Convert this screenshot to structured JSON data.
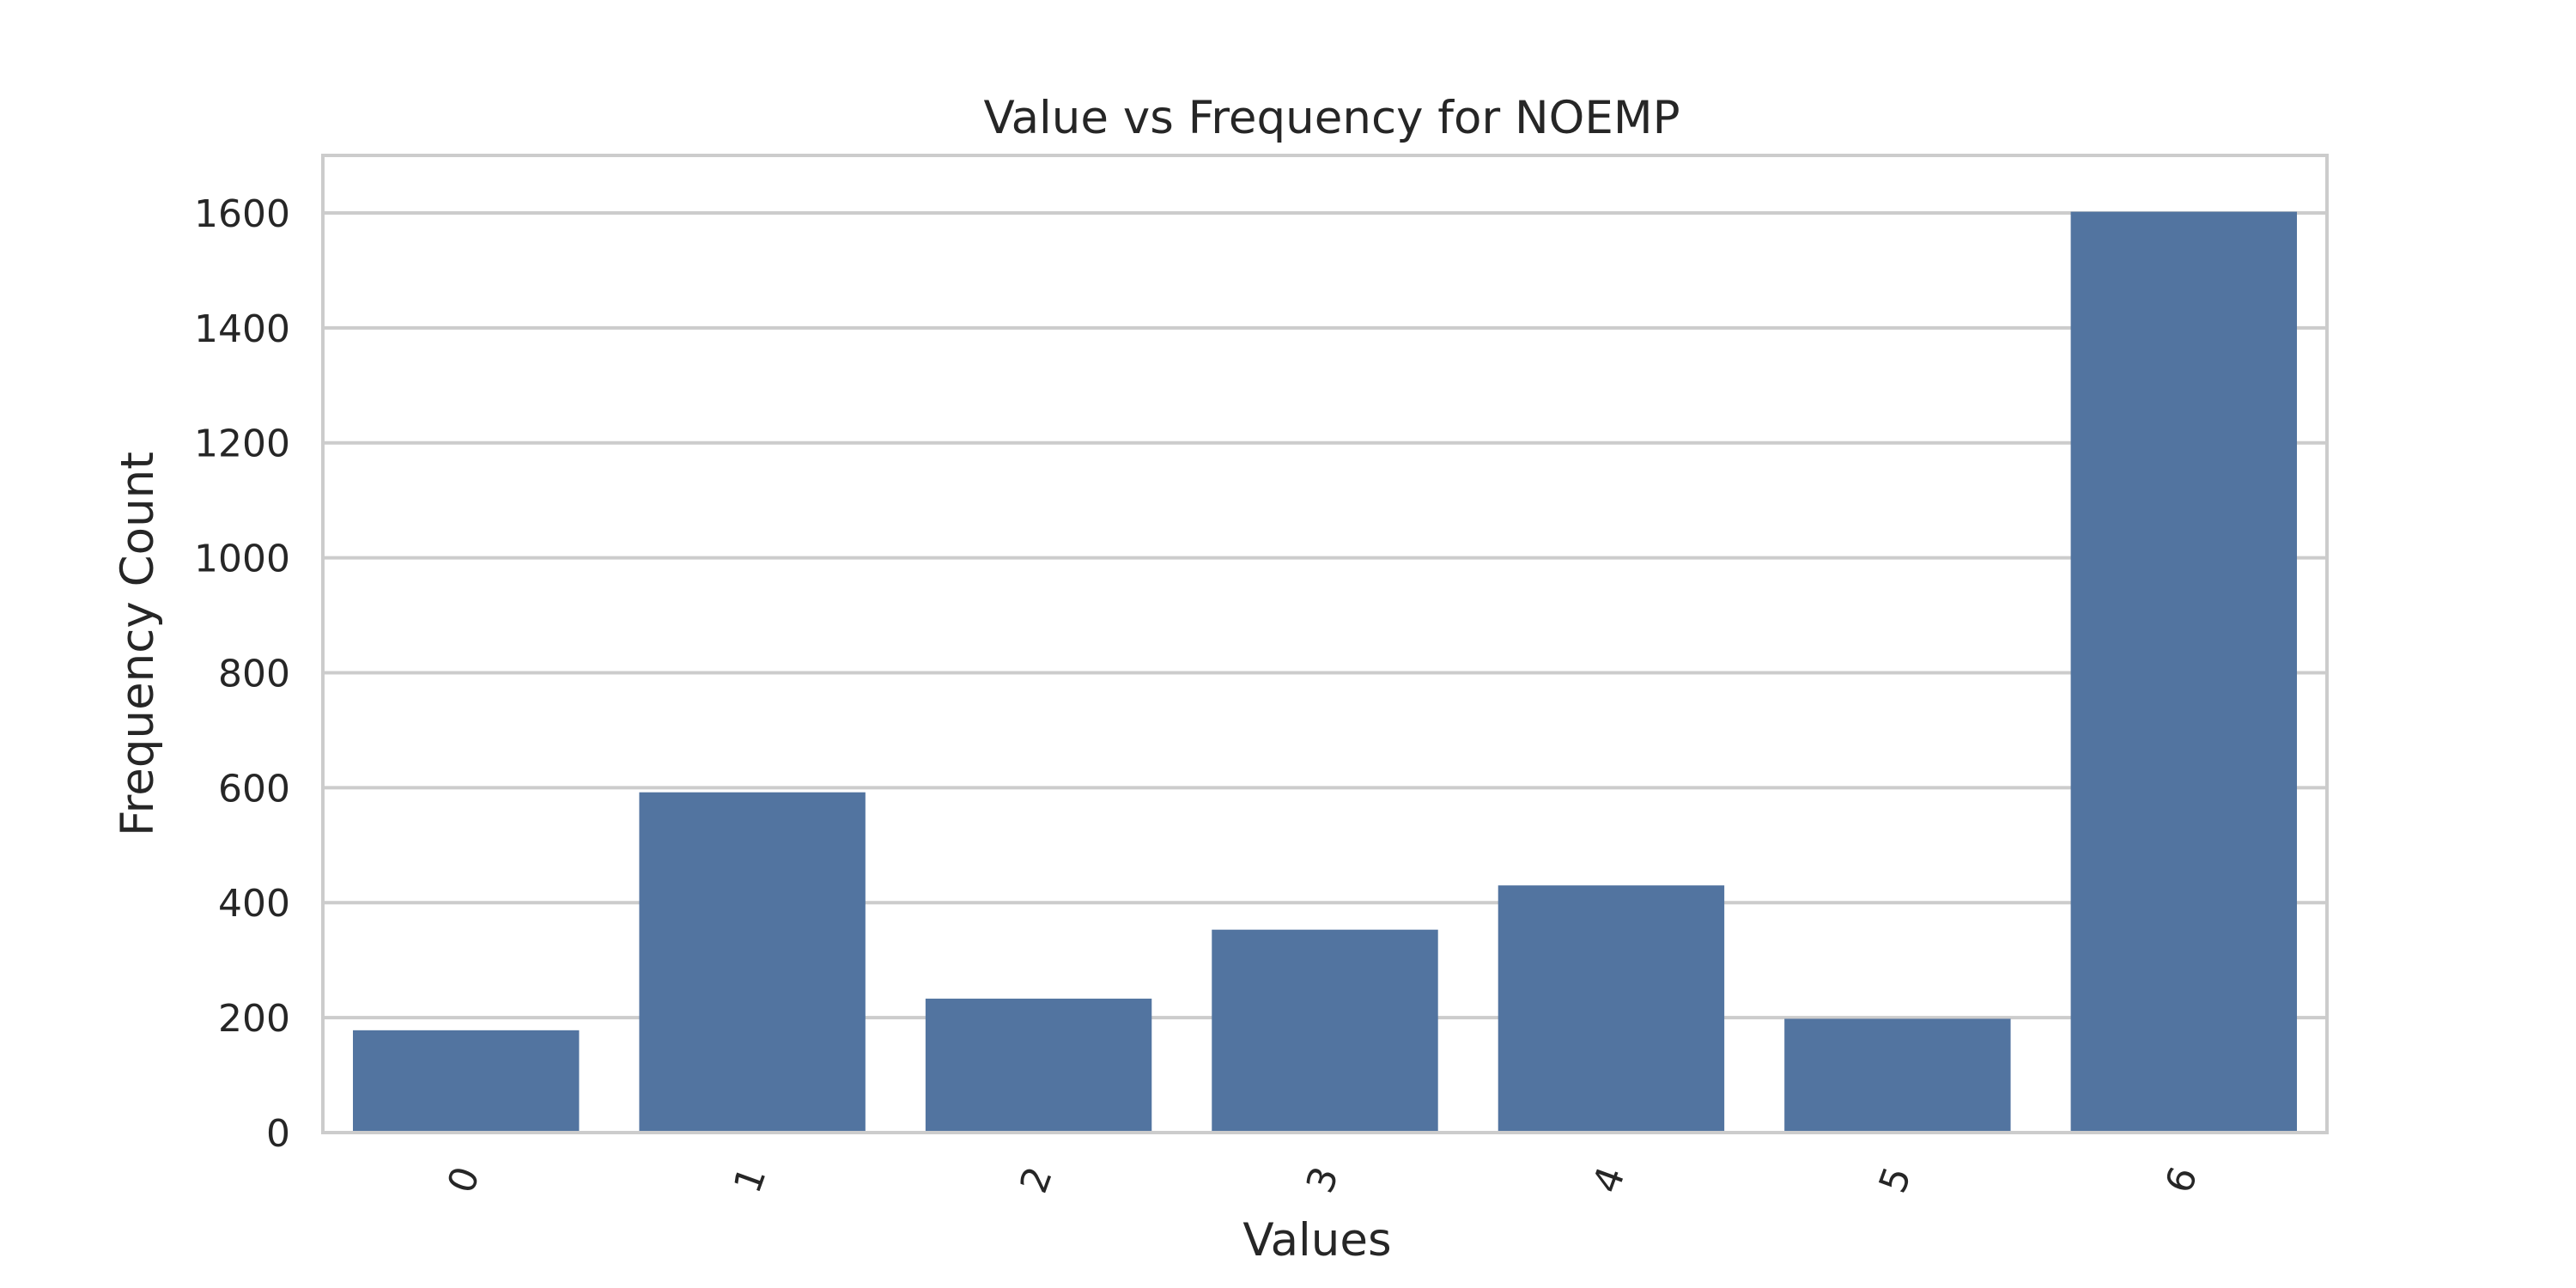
{
  "chart_data": {
    "type": "bar",
    "title": "Value vs Frequency for NOEMP",
    "xlabel": "Values",
    "ylabel": "Frequency Count",
    "categories": [
      "0",
      "1",
      "2",
      "3",
      "4",
      "5",
      "6"
    ],
    "values": [
      178,
      592,
      233,
      353,
      430,
      198,
      1602
    ],
    "ylim": [
      0,
      1700
    ],
    "yticks": [
      0,
      200,
      400,
      600,
      800,
      1000,
      1200,
      1400,
      1600
    ],
    "grid": true,
    "legend": "none",
    "bar_color": "#5274a0",
    "grid_color": "#cccccc",
    "frame_color": "#cccccc",
    "text_color": "#262626",
    "x_tick_rotation_deg": -70
  }
}
